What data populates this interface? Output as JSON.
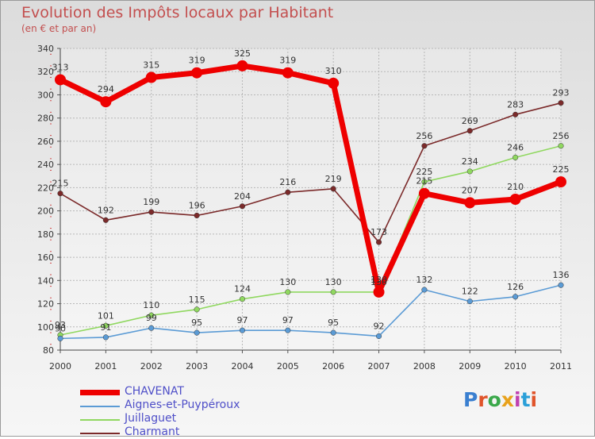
{
  "header": {
    "title": "Evolution des Impôts locaux par Habitant",
    "subtitle": "(en € et par an)"
  },
  "brand": {
    "logo": "Proxiti"
  },
  "chart_data": {
    "type": "line",
    "title": "Evolution des Impôts locaux par Habitant",
    "subtitle": "(en € et par an)",
    "xlabel": "",
    "ylabel": "",
    "categories": [
      "2000",
      "2001",
      "2002",
      "2003",
      "2004",
      "2005",
      "2006",
      "2007",
      "2008",
      "2009",
      "2010",
      "2011"
    ],
    "ylim": [
      80,
      340
    ],
    "yticks": [
      80,
      100,
      120,
      140,
      160,
      180,
      200,
      220,
      240,
      260,
      280,
      300,
      320,
      340
    ],
    "grid": true,
    "legend_position": "bottom-left",
    "series": [
      {
        "name": "CHAVENAT",
        "color": "#ee0000",
        "values": [
          313,
          294,
          315,
          319,
          325,
          319,
          310,
          130,
          215,
          207,
          210,
          225
        ]
      },
      {
        "name": "Aignes-et-Puypéroux",
        "color": "#5b9bd5",
        "values": [
          90,
          91,
          99,
          95,
          97,
          97,
          95,
          92,
          132,
          122,
          126,
          136
        ]
      },
      {
        "name": "Juillaguet",
        "color": "#90d860",
        "values": [
          93,
          101,
          110,
          115,
          124,
          130,
          130,
          130,
          225,
          234,
          246,
          256
        ]
      },
      {
        "name": "Charmant",
        "color": "#7b2a2a",
        "values": [
          215,
          192,
          199,
          196,
          204,
          216,
          219,
          173,
          256,
          269,
          283,
          293
        ]
      }
    ]
  }
}
